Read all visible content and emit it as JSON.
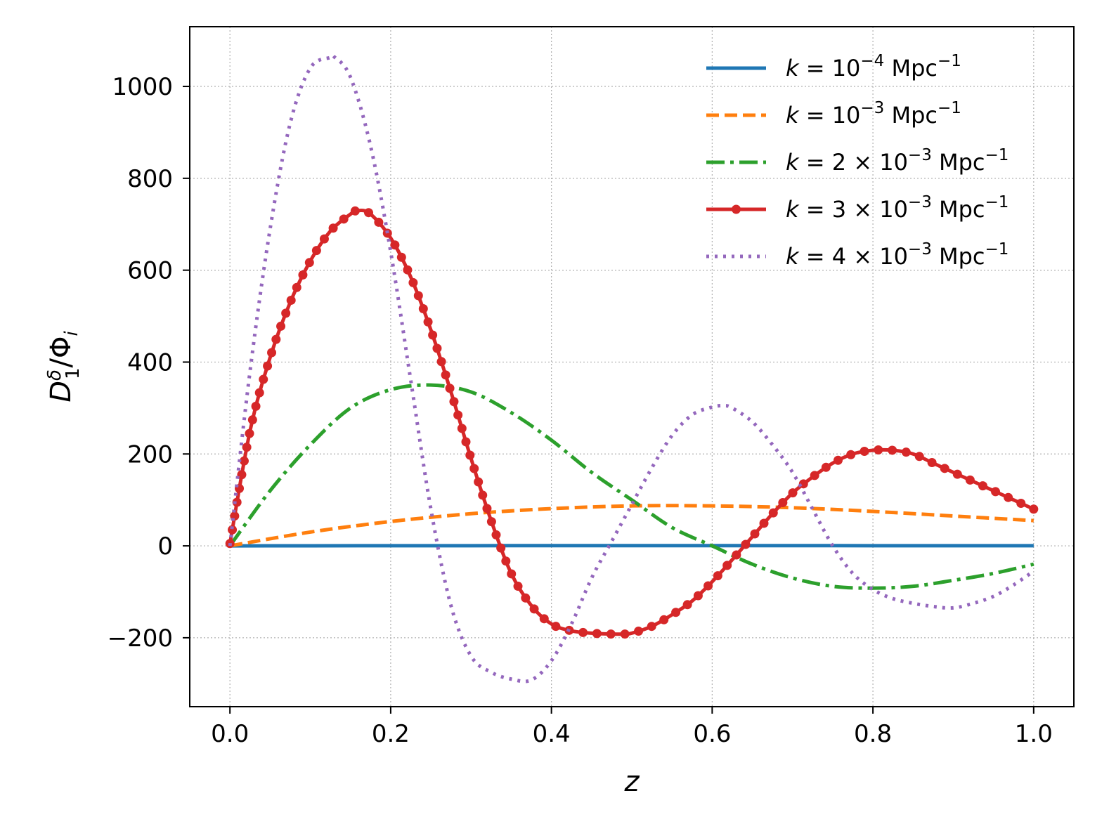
{
  "chart_data": {
    "type": "line",
    "title": "",
    "xlabel": "z",
    "ylabel": "D",
    "ylabel_sup": "δ",
    "ylabel_sub": "1",
    "ylabel_rest": "/Φ",
    "ylabel_rest_sub": "i",
    "xlim": [
      -0.05,
      1.05
    ],
    "ylim": [
      -350,
      1130
    ],
    "xticks": [
      0.0,
      0.2,
      0.4,
      0.6,
      0.8,
      1.0
    ],
    "xtick_labels": [
      "0.0",
      "0.2",
      "0.4",
      "0.6",
      "0.8",
      "1.0"
    ],
    "yticks": [
      -200,
      0,
      200,
      400,
      600,
      800,
      1000
    ],
    "ytick_labels": [
      "−200",
      "0",
      "200",
      "400",
      "600",
      "800",
      "1000"
    ],
    "grid": true,
    "legend_position": "top-right",
    "series": [
      {
        "name": "k = 10^-4 Mpc^-1",
        "legend": {
          "pre": "k = 10",
          "exp": "−4",
          "post": " Mpc",
          "post_exp": "−1"
        },
        "color": "#1f77b4",
        "style": "solid",
        "x": [
          0.0,
          0.1,
          0.2,
          0.3,
          0.4,
          0.5,
          0.6,
          0.7,
          0.8,
          0.9,
          1.0
        ],
        "y": [
          0,
          0.2,
          0.3,
          0.4,
          0.5,
          0.5,
          0.5,
          0.5,
          0.4,
          0.4,
          0.4
        ]
      },
      {
        "name": "k = 10^-3 Mpc^-1",
        "legend": {
          "pre": "k = 10",
          "exp": "−3",
          "post": " Mpc",
          "post_exp": "−1"
        },
        "color": "#ff7f0e",
        "style": "dashed",
        "x": [
          0.0,
          0.1,
          0.2,
          0.3,
          0.4,
          0.5,
          0.6,
          0.7,
          0.8,
          0.9,
          1.0
        ],
        "y": [
          0,
          30,
          53,
          70,
          81,
          87,
          87,
          83,
          75,
          65,
          55
        ]
      },
      {
        "name": "k = 2 × 10^-3 Mpc^-1",
        "legend": {
          "pre": "k = 2 × 10",
          "exp": "−3",
          "post": " Mpc",
          "post_exp": "−1"
        },
        "color": "#2ca02c",
        "style": "dashdot",
        "x": [
          0.0,
          0.05,
          0.1,
          0.15,
          0.2,
          0.25,
          0.3,
          0.35,
          0.4,
          0.45,
          0.5,
          0.55,
          0.6,
          0.65,
          0.7,
          0.75,
          0.8,
          0.85,
          0.9,
          0.95,
          1.0
        ],
        "y": [
          0,
          120,
          220,
          300,
          340,
          350,
          335,
          290,
          230,
          160,
          100,
          40,
          0,
          -40,
          -70,
          -88,
          -92,
          -88,
          -75,
          -60,
          -40
        ]
      },
      {
        "name": "k = 3 × 10^-3 Mpc^-1",
        "legend": {
          "pre": "k = 3 × 10",
          "exp": "−3",
          "post": " Mpc",
          "post_exp": "−1"
        },
        "color": "#d62728",
        "style": "solid-markers",
        "x": [
          0.0,
          0.025,
          0.05,
          0.075,
          0.1,
          0.125,
          0.15,
          0.16,
          0.175,
          0.2,
          0.225,
          0.25,
          0.275,
          0.3,
          0.325,
          0.35,
          0.375,
          0.4,
          0.425,
          0.45,
          0.475,
          0.49,
          0.5,
          0.525,
          0.55,
          0.575,
          0.6,
          0.625,
          0.65,
          0.675,
          0.7,
          0.725,
          0.75,
          0.775,
          0.8,
          0.825,
          0.85,
          0.875,
          0.9,
          0.925,
          0.95,
          0.975,
          1.0
        ],
        "y": [
          5,
          250,
          410,
          530,
          620,
          685,
          722,
          730,
          722,
          670,
          585,
          470,
          335,
          190,
          55,
          -60,
          -130,
          -170,
          -185,
          -190,
          -192,
          -192,
          -190,
          -175,
          -150,
          -120,
          -78,
          -30,
          20,
          70,
          115,
          150,
          180,
          200,
          208,
          208,
          200,
          180,
          160,
          140,
          120,
          100,
          80
        ]
      },
      {
        "name": "k = 4 × 10^-3 Mpc^-1",
        "legend": {
          "pre": "k = 4 × 10",
          "exp": "−3",
          "post": " Mpc",
          "post_exp": "−1"
        },
        "color": "#9467bd",
        "style": "dotted",
        "x": [
          0.0,
          0.025,
          0.05,
          0.075,
          0.1,
          0.125,
          0.13,
          0.15,
          0.175,
          0.2,
          0.225,
          0.25,
          0.275,
          0.3,
          0.325,
          0.35,
          0.375,
          0.4,
          0.425,
          0.45,
          0.475,
          0.5,
          0.525,
          0.55,
          0.575,
          0.6,
          0.615,
          0.625,
          0.65,
          0.675,
          0.7,
          0.725,
          0.75,
          0.775,
          0.8,
          0.825,
          0.85,
          0.875,
          0.9,
          0.925,
          0.95,
          0.975,
          1.0
        ],
        "y": [
          0,
          380,
          690,
          920,
          1040,
          1063,
          1064,
          1020,
          870,
          640,
          360,
          80,
          -130,
          -240,
          -275,
          -290,
          -292,
          -250,
          -170,
          -70,
          10,
          90,
          170,
          240,
          285,
          302,
          305,
          300,
          270,
          220,
          160,
          80,
          0,
          -60,
          -95,
          -115,
          -125,
          -132,
          -135,
          -125,
          -110,
          -85,
          -55
        ]
      }
    ]
  }
}
